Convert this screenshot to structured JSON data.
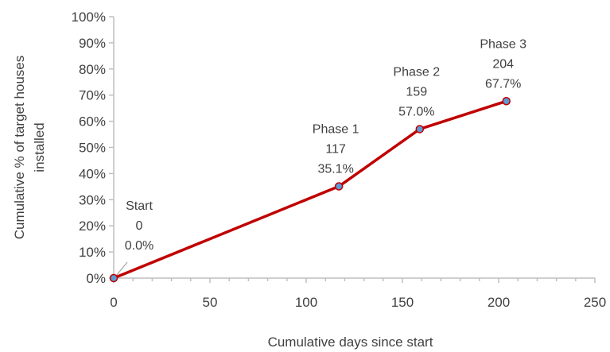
{
  "chart_data": {
    "type": "line",
    "xlabel": "Cumulative days since start",
    "ylabel_lines": [
      "Cumulative % of target houses",
      "installed"
    ],
    "xlim": [
      0,
      250
    ],
    "ylim": [
      0,
      100
    ],
    "x_ticks": [
      0,
      50,
      100,
      150,
      200,
      250
    ],
    "x_tick_labels": [
      "0",
      "50",
      "100",
      "150",
      "200",
      "250"
    ],
    "y_ticks": [
      0,
      10,
      20,
      30,
      40,
      50,
      60,
      70,
      80,
      90,
      100
    ],
    "y_tick_labels": [
      "0%",
      "10%",
      "20%",
      "30%",
      "40%",
      "50%",
      "60%",
      "70%",
      "80%",
      "90%",
      "100%"
    ],
    "grid": false,
    "line_color": "#c00000",
    "marker_color": "#5b9bd5",
    "series": [
      {
        "x": [
          0,
          117,
          159,
          204
        ],
        "y": [
          0.0,
          35.1,
          57.0,
          67.7
        ]
      }
    ],
    "annotations": [
      {
        "x": 0,
        "y": 0.0,
        "lines": [
          "Start",
          "0",
          "0.0%"
        ]
      },
      {
        "x": 117,
        "y": 35.1,
        "lines": [
          "Phase 1",
          "117",
          "35.1%"
        ]
      },
      {
        "x": 159,
        "y": 57.0,
        "lines": [
          "Phase 2",
          "159",
          "57.0%"
        ]
      },
      {
        "x": 204,
        "y": 67.7,
        "lines": [
          "Phase 3",
          "204",
          "67.7%"
        ]
      }
    ]
  }
}
